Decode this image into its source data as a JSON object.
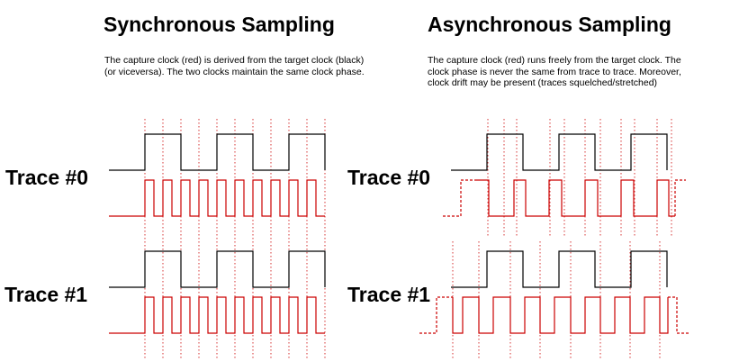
{
  "sync": {
    "title": "Synchronous Sampling",
    "description": "The capture clock (red) is derived from the target clock (black) (or viceversa). The two clocks maintain the same clock phase.",
    "traces": [
      {
        "label": "Trace #0"
      },
      {
        "label": "Trace #1"
      }
    ]
  },
  "async": {
    "title": "Asynchronous Sampling",
    "description": "The capture clock (red) runs freely from the target clock. The clock phase is never the same from trace to trace. Moreover, clock drift may be present (traces squelched/stretched)",
    "traces": [
      {
        "label": "Trace #0"
      },
      {
        "label": "Trace #1"
      }
    ]
  },
  "colors": {
    "target_clock": "#000000",
    "capture_clock": "#cc0000",
    "grid": "#cc0000"
  }
}
